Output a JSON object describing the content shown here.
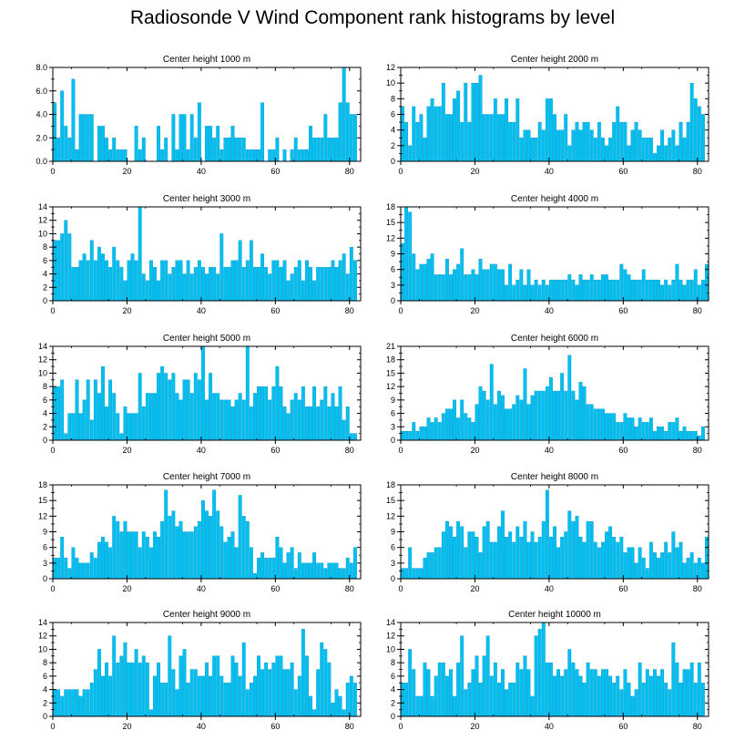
{
  "title": "Radiosonde V Wind Component rank histograms by level",
  "colors": {
    "bar": "#00c0f2",
    "bar_stroke": "#0096c8",
    "frame": "#000000"
  },
  "chart_data": [
    {
      "type": "bar",
      "title": "Center height 1000 m",
      "ylim": [
        0,
        8
      ],
      "yticks": [
        "0.0",
        "2.0",
        "4.0",
        "6.0",
        "8.0"
      ],
      "ytick_values": [
        0,
        2,
        4,
        6,
        8
      ],
      "xticks": [
        0,
        20,
        40,
        60,
        80
      ],
      "values": [
        5,
        2,
        6,
        3,
        2,
        7,
        1,
        4,
        4,
        4,
        4,
        0,
        3,
        3,
        2,
        1,
        2,
        1,
        1,
        1,
        0,
        0,
        3,
        1,
        2,
        0,
        0,
        0,
        3,
        1,
        2,
        0,
        4,
        1,
        4,
        4,
        1,
        4,
        2,
        5,
        0,
        3,
        3,
        2,
        3,
        1,
        2,
        2,
        3,
        2,
        2,
        2,
        1,
        1,
        1,
        1,
        5,
        0,
        1,
        1,
        2,
        0,
        1,
        0,
        1,
        2,
        1,
        1,
        1,
        3,
        2,
        2,
        2,
        4,
        2,
        2,
        2,
        5,
        8,
        5,
        4,
        4
      ]
    },
    {
      "type": "bar",
      "title": "Center height 2000 m",
      "ylim": [
        0,
        12
      ],
      "yticks": [
        "0",
        "2",
        "4",
        "6",
        "8",
        "10",
        "12"
      ],
      "ytick_values": [
        0,
        2,
        4,
        6,
        8,
        10,
        12
      ],
      "xticks": [
        0,
        20,
        40,
        60,
        80
      ],
      "values": [
        7,
        5,
        2,
        7,
        5,
        6,
        3,
        7,
        8,
        7,
        7,
        10,
        6,
        6,
        8,
        9,
        5,
        10,
        5,
        10,
        10,
        11,
        6,
        6,
        6,
        8,
        6,
        6,
        8,
        5,
        5,
        8,
        3,
        4,
        4,
        3,
        3,
        5,
        4,
        8,
        8,
        6,
        4,
        4,
        6,
        2,
        4,
        5,
        4,
        5,
        5,
        4,
        3,
        5,
        3,
        2,
        3,
        5,
        7,
        5,
        5,
        2,
        4,
        5,
        4,
        3,
        3,
        3,
        1,
        2,
        4,
        2,
        3,
        4,
        2,
        5,
        3,
        5,
        10,
        8,
        7,
        6
      ]
    },
    {
      "type": "bar",
      "title": "Center height 3000 m",
      "ylim": [
        0,
        14
      ],
      "yticks": [
        "0",
        "2",
        "4",
        "6",
        "8",
        "10",
        "12",
        "14"
      ],
      "ytick_values": [
        0,
        2,
        4,
        6,
        8,
        10,
        12,
        14
      ],
      "xticks": [
        0,
        20,
        40,
        60,
        80
      ],
      "values": [
        9,
        9,
        10,
        12,
        10,
        5,
        5,
        6,
        7,
        6,
        9,
        6,
        8,
        7,
        6,
        5,
        8,
        6,
        5,
        3,
        6,
        7,
        6,
        14,
        4,
        3,
        6,
        5,
        3,
        6,
        6,
        4,
        5,
        6,
        6,
        4,
        6,
        4,
        5,
        6,
        5,
        4,
        5,
        5,
        4,
        10,
        5,
        5,
        6,
        6,
        9,
        5,
        6,
        9,
        5,
        5,
        7,
        5,
        4,
        6,
        6,
        5,
        6,
        3,
        4,
        5,
        6,
        3,
        6,
        5,
        3,
        5,
        5,
        5,
        5,
        6,
        5,
        6,
        7,
        4,
        8,
        6
      ]
    },
    {
      "type": "bar",
      "title": "Center height 4000 m",
      "ylim": [
        0,
        18
      ],
      "yticks": [
        "0",
        "3",
        "6",
        "9",
        "12",
        "15",
        "18"
      ],
      "ytick_values": [
        0,
        3,
        6,
        9,
        12,
        15,
        18
      ],
      "xticks": [
        0,
        20,
        40,
        60,
        80
      ],
      "values": [
        11,
        18,
        17,
        9,
        6,
        7,
        7,
        8,
        9,
        5,
        5,
        5,
        8,
        5,
        6,
        7,
        10,
        5,
        5,
        6,
        5,
        8,
        6,
        6,
        7,
        7,
        6,
        6,
        3,
        7,
        3,
        4,
        6,
        3,
        6,
        3,
        4,
        3,
        4,
        3,
        4,
        4,
        4,
        4,
        4,
        5,
        4,
        3,
        5,
        4,
        4,
        5,
        4,
        4,
        5,
        5,
        4,
        4,
        4,
        7,
        6,
        5,
        4,
        4,
        4,
        6,
        4,
        4,
        4,
        4,
        3,
        4,
        3,
        4,
        7,
        4,
        3,
        4,
        4,
        6,
        3,
        4,
        7
      ]
    },
    {
      "type": "bar",
      "title": "Center height 5000 m",
      "ylim": [
        0,
        14
      ],
      "yticks": [
        "0",
        "2",
        "4",
        "6",
        "8",
        "10",
        "12",
        "14"
      ],
      "ytick_values": [
        0,
        2,
        4,
        6,
        8,
        10,
        12,
        14
      ],
      "xticks": [
        0,
        20,
        40,
        60,
        80
      ],
      "values": [
        8,
        8,
        9,
        1,
        4,
        4,
        9,
        4,
        6,
        9,
        3,
        9,
        7,
        11,
        5,
        9,
        7,
        4,
        1,
        5,
        4,
        4,
        4,
        10,
        5,
        7,
        7,
        7,
        10,
        11,
        10,
        9,
        10,
        7,
        6,
        9,
        9,
        7,
        10,
        9,
        14,
        6,
        10,
        7,
        7,
        6,
        6,
        6,
        5,
        6,
        7,
        6,
        14,
        5,
        7,
        8,
        8,
        8,
        6,
        8,
        11,
        8,
        5,
        4,
        6,
        7,
        6,
        8,
        5,
        5,
        8,
        5,
        6,
        8,
        5,
        7,
        5,
        8,
        3,
        5,
        1,
        1
      ]
    },
    {
      "type": "bar",
      "title": "Center height 6000 m",
      "ylim": [
        0,
        21
      ],
      "yticks": [
        "0",
        "3",
        "6",
        "9",
        "12",
        "15",
        "18",
        "21"
      ],
      "ytick_values": [
        0,
        3,
        6,
        9,
        12,
        15,
        18,
        21
      ],
      "xticks": [
        0,
        20,
        40,
        60,
        80
      ],
      "values": [
        2,
        2,
        2,
        4,
        2,
        3,
        3,
        5,
        4,
        5,
        4,
        6,
        7,
        7,
        9,
        5,
        9,
        6,
        5,
        4,
        8,
        12,
        11,
        9,
        17,
        8,
        11,
        10,
        7,
        7,
        8,
        10,
        9,
        16,
        8,
        10,
        11,
        11,
        11,
        12,
        14,
        11,
        11,
        15,
        11,
        19,
        11,
        9,
        13,
        12,
        8,
        8,
        7,
        7,
        7,
        6,
        6,
        6,
        4,
        4,
        6,
        5,
        5,
        3,
        5,
        4,
        4,
        5,
        2,
        3,
        3,
        2,
        4,
        4,
        5,
        2,
        3,
        2,
        2,
        2,
        1,
        3
      ]
    },
    {
      "type": "bar",
      "title": "Center height 7000 m",
      "ylim": [
        0,
        18
      ],
      "yticks": [
        "0",
        "3",
        "6",
        "9",
        "12",
        "15",
        "18"
      ],
      "ytick_values": [
        0,
        3,
        6,
        9,
        12,
        15,
        18
      ],
      "xticks": [
        0,
        20,
        40,
        60,
        80
      ],
      "values": [
        4,
        4,
        8,
        4,
        2,
        6,
        4,
        3,
        3,
        3,
        5,
        4,
        7,
        8,
        7,
        6,
        12,
        11,
        9,
        11,
        9,
        9,
        9,
        6,
        9,
        8,
        6,
        9,
        8,
        11,
        17,
        12,
        13,
        10,
        11,
        9,
        9,
        9,
        10,
        11,
        15,
        13,
        12,
        17,
        13,
        10,
        7,
        8,
        9,
        6,
        16,
        12,
        11,
        6,
        1,
        4,
        5,
        4,
        4,
        4,
        8,
        6,
        3,
        5,
        6,
        2,
        5,
        3,
        3,
        3,
        5,
        3,
        3,
        2,
        3,
        3,
        3,
        2,
        2,
        4,
        3,
        6
      ]
    },
    {
      "type": "bar",
      "title": "Center height 8000 m",
      "ylim": [
        0,
        18
      ],
      "yticks": [
        "0",
        "3",
        "6",
        "9",
        "12",
        "15",
        "18"
      ],
      "ytick_values": [
        0,
        3,
        6,
        9,
        12,
        15,
        18
      ],
      "xticks": [
        0,
        20,
        40,
        60,
        80
      ],
      "values": [
        2,
        2,
        6,
        2,
        2,
        2,
        4,
        5,
        5,
        6,
        6,
        9,
        11,
        10,
        8,
        11,
        10,
        6,
        9,
        9,
        8,
        5,
        10,
        11,
        7,
        7,
        10,
        13,
        8,
        9,
        7,
        10,
        8,
        11,
        7,
        9,
        7,
        8,
        11,
        17,
        8,
        10,
        6,
        8,
        9,
        13,
        11,
        12,
        8,
        7,
        11,
        11,
        7,
        6,
        7,
        9,
        10,
        8,
        7,
        8,
        5,
        6,
        6,
        3,
        6,
        4,
        2,
        7,
        5,
        4,
        5,
        7,
        5,
        9,
        6,
        7,
        3,
        4,
        5,
        3,
        4,
        3,
        8
      ]
    },
    {
      "type": "bar",
      "title": "Center height 9000 m",
      "ylim": [
        0,
        14
      ],
      "yticks": [
        "0",
        "2",
        "4",
        "6",
        "8",
        "10",
        "12",
        "14"
      ],
      "ytick_values": [
        0,
        2,
        4,
        6,
        8,
        10,
        12,
        14
      ],
      "xticks": [
        0,
        20,
        40,
        60,
        80
      ],
      "values": [
        4,
        4,
        3,
        4,
        4,
        4,
        4,
        3,
        4,
        4,
        5,
        7,
        10,
        6,
        8,
        6,
        12,
        8,
        9,
        11,
        8,
        8,
        10,
        8,
        9,
        8,
        1,
        6,
        8,
        5,
        5,
        12,
        7,
        4,
        9,
        10,
        5,
        7,
        7,
        6,
        6,
        8,
        6,
        9,
        9,
        6,
        5,
        5,
        9,
        8,
        6,
        11,
        4,
        5,
        6,
        9,
        7,
        8,
        7,
        8,
        9,
        9,
        7,
        7,
        8,
        4,
        6,
        13,
        9,
        3,
        1,
        7,
        11,
        10,
        8,
        2,
        4,
        3,
        1,
        5,
        6,
        5
      ]
    },
    {
      "type": "bar",
      "title": "Center height 10000 m",
      "ylim": [
        0,
        14
      ],
      "yticks": [
        "0",
        "2",
        "4",
        "6",
        "8",
        "10",
        "12",
        "14"
      ],
      "ytick_values": [
        0,
        2,
        4,
        6,
        8,
        10,
        12,
        14
      ],
      "xticks": [
        0,
        20,
        40,
        60,
        80
      ],
      "values": [
        5,
        5,
        10,
        7,
        3,
        3,
        8,
        7,
        3,
        6,
        8,
        8,
        6,
        7,
        3,
        8,
        12,
        4,
        5,
        7,
        9,
        5,
        9,
        12,
        6,
        8,
        5,
        7,
        4,
        5,
        5,
        8,
        7,
        9,
        7,
        3,
        12,
        13,
        14,
        8,
        8,
        6,
        7,
        6,
        7,
        10,
        8,
        7,
        6,
        5,
        8,
        7,
        7,
        6,
        7,
        7,
        6,
        5,
        6,
        4,
        7,
        5,
        3,
        4,
        8,
        5,
        7,
        6,
        7,
        6,
        7,
        5,
        4,
        11,
        8,
        5,
        7,
        7,
        8,
        5,
        8,
        5
      ]
    }
  ]
}
